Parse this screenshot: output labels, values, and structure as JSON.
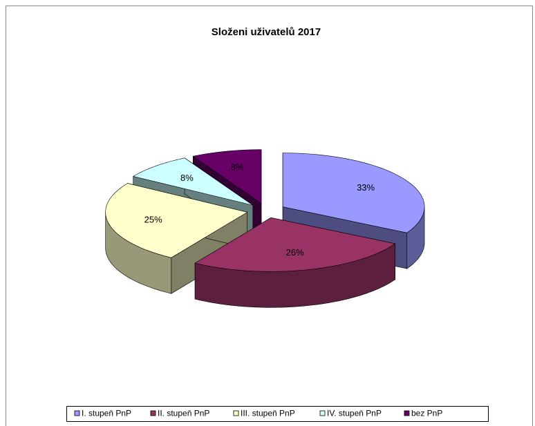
{
  "chart_data": {
    "type": "pie",
    "title": "Složeni uživatelů 2017",
    "categories": [
      "I. stupeň PnP",
      "II. stupeň PnP",
      "III. stupeň PnP",
      "IV. stupeň PnP",
      "bez PnP"
    ],
    "values": [
      33,
      26,
      25,
      8,
      8
    ],
    "value_labels": [
      "33%",
      "26%",
      "25%",
      "8%",
      "8%"
    ],
    "colors": [
      "#9999ff",
      "#993366",
      "#ffffcc",
      "#ccffff",
      "#660066"
    ],
    "legend": "bottom"
  }
}
